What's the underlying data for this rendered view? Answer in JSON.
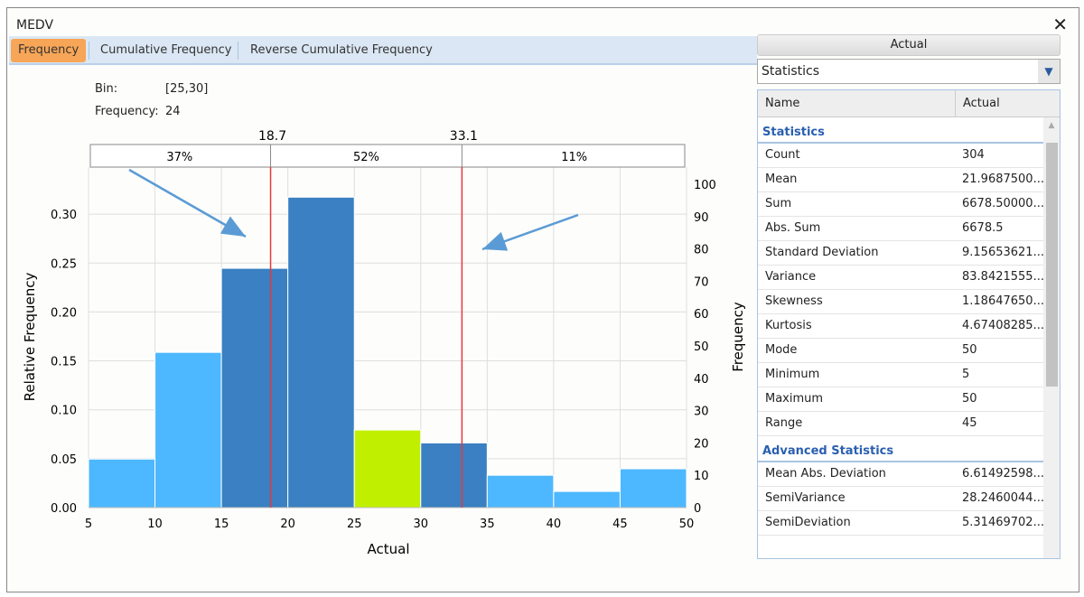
{
  "window": {
    "title": "MEDV",
    "close": "✕"
  },
  "tabs": [
    "Frequency",
    "Cumulative Frequency",
    "Reverse Cumulative Frequency"
  ],
  "info": {
    "bin_label": "Bin:",
    "bin_value": "[25,30]",
    "freq_label": "Frequency:",
    "freq_value": "24"
  },
  "colors": {
    "bar": "#4db8ff",
    "bar_selected_range": "#3a80c2",
    "bar_highlight": "#c0f000",
    "marker": "#e8383b",
    "arrow": "#5b9bd5"
  },
  "chart_data": {
    "type": "bar",
    "xlabel": "Actual",
    "ylabel": "Relative Frequency",
    "y2label": "Frequency",
    "bins": [
      [
        5,
        10
      ],
      [
        10,
        15
      ],
      [
        15,
        20
      ],
      [
        20,
        25
      ],
      [
        25,
        30
      ],
      [
        30,
        35
      ],
      [
        35,
        40
      ],
      [
        40,
        45
      ],
      [
        45,
        50
      ]
    ],
    "frequency": [
      15,
      48,
      74,
      96,
      24,
      20,
      10,
      5,
      12
    ],
    "relative_frequency": [
      0.049,
      0.158,
      0.243,
      0.316,
      0.079,
      0.066,
      0.033,
      0.016,
      0.039
    ],
    "bar_styles": [
      "normal",
      "normal",
      "selected",
      "selected",
      "highlight",
      "selected",
      "normal",
      "normal",
      "normal"
    ],
    "xlim": [
      5,
      50
    ],
    "ylim": [
      0,
      0.33
    ],
    "y2lim": [
      0,
      105
    ],
    "xticks": [
      5,
      10,
      15,
      20,
      25,
      30,
      35,
      40,
      45,
      50
    ],
    "yticks": [
      "0.00",
      "0.05",
      "0.10",
      "0.15",
      "0.20",
      "0.25",
      "0.30"
    ],
    "y2ticks": [
      0,
      10,
      20,
      30,
      40,
      50,
      60,
      70,
      80,
      90,
      100
    ],
    "markers": [
      {
        "value": 18.7,
        "label": "18.7"
      },
      {
        "value": 33.1,
        "label": "33.1"
      }
    ],
    "regions": [
      "37%",
      "52%",
      "11%"
    ],
    "grid": true
  },
  "panel": {
    "header": "Actual",
    "select": "Statistics",
    "columns": [
      "Name",
      "Actual"
    ],
    "sections": [
      {
        "title": "Statistics",
        "rows": [
          [
            "Count",
            "304"
          ],
          [
            "Mean",
            "21.9687500..."
          ],
          [
            "Sum",
            "6678.50000..."
          ],
          [
            "Abs. Sum",
            "6678.5"
          ],
          [
            "Standard Deviation",
            "9.15653621..."
          ],
          [
            "Variance",
            "83.8421555..."
          ],
          [
            "Skewness",
            "1.18647650..."
          ],
          [
            "Kurtosis",
            "4.67408285..."
          ],
          [
            "Mode",
            "50"
          ],
          [
            "Minimum",
            "5"
          ],
          [
            "Maximum",
            "50"
          ],
          [
            "Range",
            "45"
          ]
        ]
      },
      {
        "title": "Advanced Statistics",
        "rows": [
          [
            "Mean Abs. Deviation",
            "6.61492598..."
          ],
          [
            "SemiVariance",
            "28.2460044..."
          ],
          [
            "SemiDeviation",
            "5.31469702..."
          ]
        ]
      }
    ]
  }
}
